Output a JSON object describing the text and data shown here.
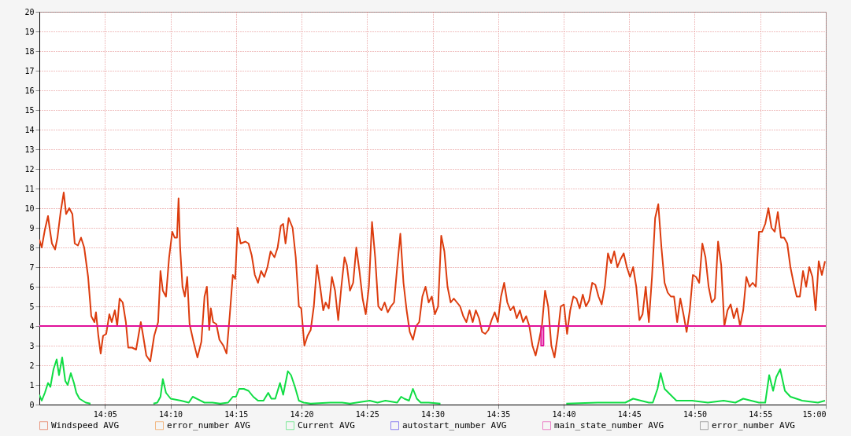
{
  "chart_data": {
    "type": "line",
    "xlim": [
      14,
      15
    ],
    "ylim": [
      0,
      20
    ],
    "xticks": [
      {
        "value": 14.0833,
        "label": "14:05"
      },
      {
        "value": 14.1667,
        "label": "14:10"
      },
      {
        "value": 14.25,
        "label": "14:15"
      },
      {
        "value": 14.3333,
        "label": "14:20"
      },
      {
        "value": 14.4167,
        "label": "14:25"
      },
      {
        "value": 14.5,
        "label": "14:30"
      },
      {
        "value": 14.5833,
        "label": "14:35"
      },
      {
        "value": 14.6667,
        "label": "14:40"
      },
      {
        "value": 14.75,
        "label": "14:45"
      },
      {
        "value": 14.8333,
        "label": "14:50"
      },
      {
        "value": 14.9167,
        "label": "14:55"
      },
      {
        "value": 15,
        "label": "15:00"
      }
    ],
    "yticks": [
      0,
      1,
      2,
      3,
      4,
      5,
      6,
      7,
      8,
      9,
      10,
      11,
      12,
      13,
      14,
      15,
      16,
      17,
      18,
      19,
      20
    ],
    "grid": true,
    "legend": "bottom",
    "marker": "none",
    "line_style": "solid",
    "series": [
      {
        "name": "Windspeed AVG",
        "color": "#dc3c0e",
        "x": [
          14,
          14.003,
          14.007,
          14.011,
          14.013,
          14.016,
          14.02,
          14.023,
          14.027,
          14.031,
          14.034,
          14.038,
          14.042,
          14.045,
          14.049,
          14.053,
          14.057,
          14.062,
          14.066,
          14.07,
          14.072,
          14.075,
          14.078,
          14.081,
          14.085,
          14.089,
          14.092,
          14.096,
          14.099,
          14.102,
          14.106,
          14.11,
          14.113,
          14.118,
          14.123,
          14.126,
          14.129,
          14.132,
          14.136,
          14.141,
          14.146,
          14.151,
          14.154,
          14.157,
          14.161,
          14.165,
          14.169,
          14.172,
          14.175,
          14.177,
          14.179,
          14.182,
          14.185,
          14.188,
          14.191,
          14.196,
          14.201,
          14.206,
          14.21,
          14.213,
          14.216,
          14.218,
          14.221,
          14.225,
          14.229,
          14.234,
          14.238,
          14.242,
          14.246,
          14.249,
          14.252,
          14.256,
          14.262,
          14.266,
          14.27,
          14.274,
          14.278,
          14.282,
          14.286,
          14.29,
          14.294,
          14.299,
          14.303,
          14.307,
          14.31,
          14.313,
          14.317,
          14.322,
          14.326,
          14.33,
          14.333,
          14.337,
          14.341,
          14.345,
          14.349,
          14.353,
          14.357,
          14.361,
          14.364,
          14.368,
          14.372,
          14.376,
          14.38,
          14.384,
          14.388,
          14.391,
          14.395,
          14.399,
          14.403,
          14.407,
          14.411,
          14.415,
          14.419,
          14.423,
          14.427,
          14.431,
          14.435,
          14.439,
          14.443,
          14.447,
          14.451,
          14.455,
          14.459,
          14.463,
          14.467,
          14.471,
          14.475,
          14.479,
          14.483,
          14.487,
          14.491,
          14.495,
          14.499,
          14.503,
          14.507,
          14.511,
          14.515,
          14.519,
          14.523,
          14.527,
          14.531,
          14.535,
          14.539,
          14.543,
          14.547,
          14.551,
          14.555,
          14.559,
          14.563,
          14.567,
          14.571,
          14.575,
          14.579,
          14.583,
          14.587,
          14.591,
          14.595,
          14.599,
          14.603,
          14.607,
          14.611,
          14.615,
          14.619,
          14.623,
          14.627,
          14.631,
          14.635,
          14.639,
          14.643,
          14.647,
          14.651,
          14.655,
          14.659,
          14.663,
          14.667,
          14.671,
          14.675,
          14.679,
          14.683,
          14.687,
          14.691,
          14.695,
          14.699,
          14.703,
          14.707,
          14.711,
          14.715,
          14.719,
          14.723,
          14.727,
          14.731,
          14.735,
          14.739,
          14.743,
          14.747,
          14.751,
          14.755,
          14.759,
          14.763,
          14.767,
          14.771,
          14.775,
          14.779,
          14.783,
          14.787,
          14.791,
          14.795,
          14.799,
          14.803,
          14.807,
          14.811,
          14.815,
          14.819,
          14.823,
          14.827,
          14.831,
          14.835,
          14.839,
          14.843,
          14.847,
          14.851,
          14.855,
          14.859,
          14.863,
          14.867,
          14.871,
          14.875,
          14.879,
          14.883,
          14.887,
          14.891,
          14.895,
          14.899,
          14.903,
          14.907,
          14.911,
          14.915,
          14.919,
          14.923,
          14.927,
          14.931,
          14.935,
          14.939,
          14.943,
          14.947,
          14.951,
          14.955,
          14.959,
          14.963,
          14.967,
          14.971,
          14.975,
          14.979,
          14.983,
          14.987,
          14.991,
          14.995,
          14.999
        ],
        "values": [
          8.4,
          8.0,
          8.9,
          9.6,
          9.0,
          8.2,
          7.9,
          8.5,
          9.8,
          10.8,
          9.7,
          10.0,
          9.7,
          8.2,
          8.1,
          8.5,
          8.0,
          6.5,
          4.5,
          4.2,
          4.7,
          3.5,
          2.6,
          3.5,
          3.6,
          4.6,
          4.2,
          4.8,
          4.0,
          5.4,
          5.2,
          4.2,
          2.9,
          2.9,
          2.8,
          3.5,
          4.2,
          3.5,
          2.5,
          2.2,
          3.5,
          4.2,
          6.8,
          5.8,
          5.5,
          7.5,
          8.8,
          8.5,
          8.5,
          10.5,
          8.0,
          6.0,
          5.5,
          6.5,
          4.1,
          3.2,
          2.4,
          3.2,
          5.5,
          6.0,
          3.8,
          4.9,
          4.2,
          4.1,
          3.3,
          3.0,
          2.6,
          4.5,
          6.6,
          6.4,
          9.0,
          8.2,
          8.3,
          8.2,
          7.6,
          6.6,
          6.2,
          6.8,
          6.5,
          7.0,
          7.8,
          7.5,
          8.0,
          9.1,
          9.2,
          8.2,
          9.5,
          9.0,
          7.5,
          5.0,
          4.9,
          3.0,
          3.5,
          3.8,
          5.0,
          7.1,
          6.0,
          4.8,
          5.2,
          4.9,
          6.5,
          5.8,
          4.3,
          6.0,
          7.5,
          7.1,
          5.8,
          6.2,
          8.0,
          6.8,
          5.4,
          4.6,
          6.0,
          9.3,
          7.5,
          5.0,
          4.8,
          5.2,
          4.7,
          5.0,
          5.2,
          7.0,
          8.7,
          6.2,
          4.8,
          3.7,
          3.3,
          4.0,
          4.2,
          5.5,
          6.0,
          5.2,
          5.5,
          4.6,
          5.0,
          8.6,
          7.8,
          6.0,
          5.2,
          5.4,
          5.2,
          5.0,
          4.5,
          4.2,
          4.8,
          4.2,
          4.8,
          4.4,
          3.7,
          3.6,
          3.8,
          4.3,
          4.7,
          4.2,
          5.5,
          6.2,
          5.2,
          4.8,
          5.0,
          4.4,
          4.8,
          4.2,
          4.5,
          4.0,
          3.0,
          2.5,
          3.2,
          4.0,
          5.8,
          5.0,
          3.0,
          2.4,
          3.5,
          5.0,
          5.1,
          3.6,
          4.8,
          5.5,
          5.4,
          4.9,
          5.6,
          5.0,
          5.3,
          6.2,
          6.1,
          5.5,
          5.1,
          6.0,
          7.7,
          7.2,
          7.8,
          7.0,
          7.4,
          7.7,
          7.0,
          6.5,
          7.0,
          6.0,
          4.3,
          4.6,
          6.0,
          4.2,
          6.5,
          9.5,
          10.2,
          8.0,
          6.2,
          5.7,
          5.5,
          5.5,
          4.2,
          5.4,
          4.6,
          3.7,
          4.8,
          6.6,
          6.5,
          6.2,
          8.2,
          7.5,
          6.0,
          5.2,
          5.4,
          8.3,
          7.1,
          4.0,
          4.8,
          5.1,
          4.4,
          4.9,
          4.0,
          4.8,
          6.5,
          6.0,
          6.2,
          6.0,
          8.8,
          8.8,
          9.2,
          10.0,
          9.0,
          8.8,
          9.8,
          8.5,
          8.5,
          8.2,
          7.0,
          6.2,
          5.5,
          5.5,
          6.8,
          6.0,
          7.0,
          6.5,
          4.8,
          7.3,
          6.6,
          7.3
        ]
      },
      {
        "name": "error_number AVG",
        "color": "#ef7d14"
      },
      {
        "name": "Current AVG",
        "color": "#10dd44",
        "x": [
          14,
          14.003,
          14.007,
          14.011,
          14.014,
          14.018,
          14.022,
          14.025,
          14.029,
          14.033,
          14.036,
          14.04,
          14.044,
          14.047,
          14.051,
          14.055,
          14.059,
          14.065,
          14.07,
          14.145,
          14.15,
          14.154,
          14.157,
          14.161,
          14.167,
          14.18,
          14.19,
          14.195,
          14.21,
          14.22,
          14.23,
          14.24,
          14.246,
          14.25,
          14.254,
          14.26,
          14.266,
          14.272,
          14.278,
          14.285,
          14.291,
          14.295,
          14.3,
          14.306,
          14.31,
          14.316,
          14.32,
          14.325,
          14.33,
          14.336,
          14.345,
          14.37,
          14.385,
          14.395,
          14.42,
          14.43,
          14.44,
          14.455,
          14.46,
          14.464,
          14.47,
          14.475,
          14.48,
          14.485,
          14.495,
          14.51,
          14.52,
          14.67,
          14.71,
          14.735,
          14.745,
          14.755,
          14.775,
          14.78,
          14.786,
          14.79,
          14.795,
          14.81,
          14.83,
          14.85,
          14.87,
          14.885,
          14.89,
          14.895,
          14.915,
          14.923,
          14.928,
          14.933,
          14.937,
          14.942,
          14.948,
          14.955,
          14.97,
          14.99,
          14.999
        ],
        "values": [
          0.5,
          0.2,
          0.6,
          1.1,
          0.9,
          1.8,
          2.3,
          1.5,
          2.4,
          1.2,
          1.0,
          1.6,
          1.1,
          0.6,
          0.3,
          0.2,
          0.1,
          0.05,
          null,
          0.05,
          0.1,
          0.4,
          1.3,
          0.6,
          0.3,
          0.2,
          0.1,
          0.4,
          0.1,
          0.1,
          0.05,
          0.1,
          0.4,
          0.4,
          0.8,
          0.8,
          0.7,
          0.4,
          0.2,
          0.2,
          0.6,
          0.3,
          0.3,
          1.1,
          0.5,
          1.7,
          1.5,
          0.9,
          0.2,
          0.1,
          0.05,
          0.1,
          0.1,
          0.05,
          0.2,
          0.1,
          0.2,
          0.1,
          0.4,
          0.3,
          0.2,
          0.8,
          0.3,
          0.1,
          0.1,
          0.05,
          null,
          0.05,
          0.1,
          0.1,
          0.1,
          0.3,
          0.1,
          0.1,
          0.8,
          1.6,
          0.8,
          0.2,
          0.2,
          0.1,
          0.2,
          0.1,
          0.2,
          0.3,
          0.1,
          0.1,
          1.5,
          0.7,
          1.4,
          1.8,
          0.7,
          0.4,
          0.2,
          0.1,
          0.2
        ]
      },
      {
        "name": "autostart_number AVG",
        "color": "#2a14e8"
      },
      {
        "name": "main_state_number AVG",
        "color": "#e0109a",
        "type": "step",
        "x": [
          14,
          14.638,
          14.641,
          15
        ],
        "values": [
          4,
          3,
          4,
          4
        ]
      },
      {
        "name": "error_number AVG",
        "color": "#555555"
      }
    ]
  }
}
